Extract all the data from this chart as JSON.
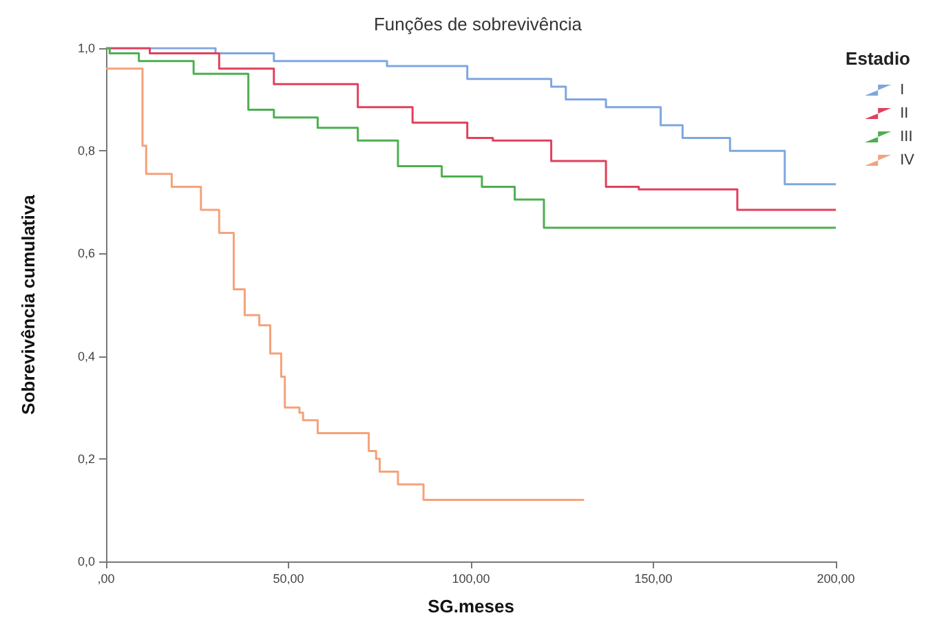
{
  "chart_data": {
    "type": "step",
    "title": "Funções de sobrevivência",
    "xlabel": "SG.meses",
    "ylabel": "Sobrevivência cumulativa",
    "legend_title": "Estadio",
    "legend": "right",
    "grid": false,
    "marker": "none",
    "line_style": "solid",
    "xlim": [
      0,
      200
    ],
    "xticks": [
      {
        "value": 0,
        "label": ",00"
      },
      {
        "value": 50,
        "label": "50,00"
      },
      {
        "value": 100,
        "label": "100,00"
      },
      {
        "value": 150,
        "label": "150,00"
      },
      {
        "value": 200,
        "label": "200,00"
      }
    ],
    "ylim": [
      0,
      1
    ],
    "yticks": [
      {
        "value": 0,
        "label": "0,0"
      },
      {
        "value": 0.2,
        "label": "0,2"
      },
      {
        "value": 0.4,
        "label": "0,4"
      },
      {
        "value": 0.6,
        "label": "0,6"
      },
      {
        "value": 0.8,
        "label": "0,8"
      },
      {
        "value": 1,
        "label": "1,0"
      }
    ],
    "series": [
      {
        "name": "I",
        "color": "#7ea6e0",
        "x": [
          0,
          30,
          46,
          77,
          99,
          122,
          126,
          137,
          152,
          158,
          171,
          186,
          200
        ],
        "values": [
          1,
          0.99,
          0.975,
          0.965,
          0.94,
          0.925,
          0.9,
          0.885,
          0.85,
          0.825,
          0.8,
          0.735,
          0.735
        ]
      },
      {
        "name": "II",
        "color": "#e0405c",
        "x": [
          0,
          12,
          31,
          46,
          69,
          84,
          99,
          106,
          122,
          137,
          146,
          173,
          200
        ],
        "values": [
          1,
          0.99,
          0.96,
          0.93,
          0.885,
          0.855,
          0.825,
          0.82,
          0.78,
          0.73,
          0.725,
          0.685,
          0.685
        ]
      },
      {
        "name": "III",
        "color": "#4caf50",
        "x": [
          0,
          1,
          9,
          24,
          39,
          46,
          58,
          69,
          80,
          92,
          103,
          112,
          120,
          200
        ],
        "values": [
          1,
          0.99,
          0.975,
          0.95,
          0.88,
          0.865,
          0.845,
          0.82,
          0.77,
          0.75,
          0.73,
          0.705,
          0.65,
          0.65
        ]
      },
      {
        "name": "IV",
        "color": "#f5a27a",
        "x": [
          0,
          4,
          10,
          11,
          18,
          26,
          31,
          35,
          38,
          42,
          45,
          48,
          49,
          53,
          54,
          58,
          72,
          74,
          75,
          80,
          87,
          131
        ],
        "values": [
          0.96,
          0.96,
          0.81,
          0.755,
          0.73,
          0.685,
          0.64,
          0.53,
          0.48,
          0.46,
          0.405,
          0.36,
          0.3,
          0.29,
          0.275,
          0.25,
          0.215,
          0.2,
          0.175,
          0.15,
          0.12,
          0.12
        ]
      }
    ]
  }
}
